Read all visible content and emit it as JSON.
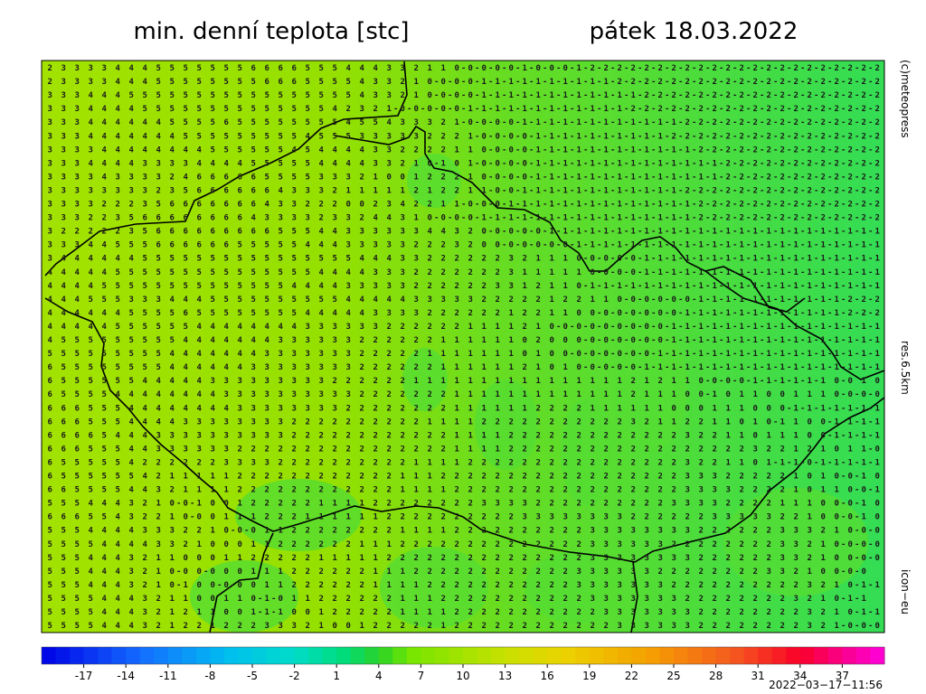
{
  "title": "min. denní teplota [stc]",
  "date": "pátek 18.03.2022",
  "credit": "(c)meteopress",
  "resolution": "res.6.5km",
  "model": "icon−eu",
  "timestamp": "2022−03−17−11:56",
  "map": {
    "rows": [
      " 2 3 3 3 3 4 4 4 5 5 5 5 5 5 5 6 6 6 6 5 5 5 4 4 4 3 3 2 1 1 0-0-0-0-0-1-0-0-0-1-2-2-2-2-2-2-2-2-2-2-2-2-2-2-2-2-2-2-2-2-2-2",
      " 2 3 3 3 3 4 4 4 5 5 5 5 5 5 5 5 6 6 6 5 5 5 5 4 3 3 2 1 0-0-0-0-1-1-1-1-1-1-1-1-1-1-2-2-2-2-2-2-2-2-2-2-2-2-2-2-2-2-2-2-2-2",
      " 3 3 3 4 4 4 5 5 5 5 5 5 5 5 5 5 5 5 5 5 5 5 5 4 3 3 2 1 0-0-0-0-1-1-1-1-1-1-1-1-1-1-1-1-2-2-2-2-2-2-2-2-2-2-2-2-2-2-2-2-2-2",
      " 3 3 3 4 4 4 4 5 5 5 5 5 5 5 5 5 5 5 5 5 5 4 2 3 2 1-0-0-0-0-0-1-1-1-1-1-1-1-1-1-1-1-1-2-2-2-2-2-2-2-2-2-2-2-2-2-2-2-2-2-2-2",
      " 3 3 3 4 4 4 4 4 4 5 5 5 5 6 5 5 5 5 5 5 5 5 4 5 5 4 3 3 3 2 1-0-0-0-0-1-1-1-1-1-1-1-1-1-1-1-1-2-2-2-2-2-2-2-2-2-2-2-2-2-2-2",
      " 3 3 3 4 4 4 4 4 4 4 5 5 5 5 5 5 5 5 5 4 5 5 5 3 3 3 3 3 2 2 2 1-0-0-0-0-1-1-1-1-1-1-1-1-1-1-2-2-2-2-2-2-2-2-2-2-2-2-2-2-2-2",
      " 3 3 3 3 4 4 4 4 4 4 4 4 5 5 5 5 5 5 4 5 4 4 4 4 3 3 2 2 2 2 1 1 0-0-0-0-1-1-1-1-1-1-1-1-1-1-1-1-2-2-2-2-2-2-2-2-2-2-2-2-2-2",
      " 3 3 3 4 4 4 4 3 3 3 3 4 4 4 4 5 5 5 5 5 4 4 4 4 3 3 2 1 0-1 0 1-0-0-0-0-1-1-1-1-1-1-1-1-1-1-1-1-1-1-2-2-2-2-2-2-2-2-2-2-2-2",
      " 3 3 3 3 4 3 3 3 3 2 4 6 6 6 6 6 5 5 5 5 3 3 3 2 1 0 0 1 2 2 2 1 0-0-0-0-1-1-1-1-1-1-1-1-1-1-1-1-1-1-2-2-2-2-2-2-2-2-2-2-2-2",
      " 3 3 3 3 3 3 3 3 2 3 5 6 6 6 6 6 6 4 3 3 3 2 1 1 1 1 1 2 1 2 2 1 1-0-0-1-1-1-1-1-1-1-1-1-1-1-1-2-2-2-2-2-2-2-2-2-2-2-2-2-2-2",
      " 3 3 3 3 2 2 2 3 5 6 6 6 6 6 6 6 4 3 3 2 2 2 0 0 2 3 4 2 2 1 1-0-0-0-1-1-1-1-1-1-1-1-1-1-1-1-1-1-2-2-2-2-2-2-2-2-2-2-2-2-2-2",
      " 3 3 3 2 2 3 5 6 6 6 6 6 6 6 6 4 3 3 3 3 2 3 3 2 4 4 3 1 0-0-0-0-1-1-1-1-1-1-1-1-1-1-1-1-1-1-1-1-2-2-2-2-2-2-2-2-2-2-2-2-2-2",
      " 3 2 2 2 2 2 3 5 6 6 6 6 6 6 6 6 6 5 5 5 4 4 3 3 3 3 3 3 4 4 3 2 0-0-0-0-0-1-1-1-1-1-1-1-1-1-1-1-1-1-1-1-1-1-1-1-1-1-1-1-1-1",
      " 3 3 3 4 4 5 5 5 6 6 6 6 6 6 5 5 5 5 5 4 4 4 3 3 3 3 3 2 2 2 3 2 0 0-0-0-0-0-0-1-1-1-1-1-1-1-1-1-1-1-1-1-1-1-1-1-1-1-1-1-1-1",
      " 3 4 4 4 4 4 4 5 5 5 5 5 5 5 5 5 5 5 5 5 5 5 5 4 4 4 3 3 2 2 2 2 2 2 3 2 1 1 1 0-0-0-0-0-1-1-1-1-1-1-1-1-1-1-1-1-1-1-1-1-1-1",
      " 4 4 4 4 4 5 5 5 5 5 5 5 5 5 5 5 5 5 5 5 4 4 4 4 3 3 3 2 2 2 2 2 2 2 3 1 1 1 1 1 0-0-0-0-1-1-1-1-1-1-1-1-1-1-1-1-1-1-1-1-1-1",
      " 4 4 4 4 5 5 5 5 5 5 5 5 5 5 5 5 5 5 4 4 4 4 3 3 3 3 3 2 2 2 2 2 2 3 3 1 2 1 1 0-1-1-1-1-1-1-1-1-1-1-1-1-1-1-1-1-1-1-1-1-1-1",
      " 4 4 4 5 5 5 3 3 3 4 4 4 5 5 5 5 5 5 5 5 5 5 4 4 4 4 4 3 3 3 3 3 2 2 2 2 2 1 2 2 1 1 0-0-0-0-0-0-1-1-1-1-1-1-1-1-1-1-1-2-2-2",
      " 4 4 4 4 4 4 5 5 5 5 6 5 5 5 5 5 5 5 5 4 4 4 4 4 3 3 3 3 2 2 2 2 2 2 1 2 2 1 1 0 0-0-0-0-0-0-0-1-1-1-1-1-1-1-1-1-1-1-1-2-2-2",
      " 4 4 4 4 4 5 5 5 5 5 5 4 4 4 4 4 4 4 4 3 3 3 3 3 3 2 2 2 2 2 2 1 1 1 1 2 1 0-0-0-0-0-0-0-0-0-1-1-1-1-1-1-1-1-1-1-1-1-1-1-1-1",
      " 4 5 5 5 5 5 5 5 5 5 4 4 4 4 4 4 4 3 3 3 3 3 3 2 2 2 2 2 2 1 1 1 1 1 1 0 2 0 0 0-0-0-0-0-0-0-1-1-1-1-1-1-1-1-1-1-1-1-1-1-1-1",
      " 5 5 5 5 5 5 5 5 5 4 4 4 4 4 4 4 3 3 3 3 3 3 3 2 2 2 2 2 1 1 1 1 1 1 1 0 1 0 0-0-0-0-0-0-0-1-1-1-1-1-1-1-1-1-1-1-1-1-1-1-1-1",
      " 6 5 5 5 5 5 5 5 5 4 4 4 4 4 4 3 3 3 3 3 3 3 3 2 2 2 2 2 2 1 1 1 1 1 1 2 1 0 1 0-0-0-0-0-1-1-1-1-1-1-1-1-1-1-1-1-1-1-1-1-1-1",
      " 6 5 5 5 5 5 5 4 4 4 4 4 3 3 3 3 3 3 3 3 3 2 2 2 2 2 2 1 1 1 1 1 1 1 1 1 1 1 1 1 1 1 1 2 1 2 1 1 0-0-0-0-1-1-1-1-1-1 0-0 1 0",
      " 6 5 5 5 5 4 4 4 4 4 4 4 4 3 3 3 3 3 3 3 3 3 3 2 2 2 2 2 2 2 1 1 1 1 1 1 1 1 1 1 1 1 1 2 1 1 1 0 0-1 0 1 1 0 0 1 1 1 0-0-0-0",
      " 6 6 6 5 5 5 4 4 4 4 4 4 4 4 3 3 3 3 3 3 3 3 2 2 2 2 2 2 2 2 1 1 1 1 1 1 2 2 2 2 1 1 1 1 1 1 0 0 0 1 1 1 0 0 0-1-1-1-1-1-1-1",
      " 6 6 6 5 5 5 4 4 4 4 3 3 3 3 3 3 3 3 2 2 2 2 2 2 2 2 2 2 1 1 1 1 2 2 2 2 2 2 2 2 2 2 2 3 2 1 1 2 2 1 1 0 1 0-1 1 0 0-1-1-1-1",
      " 6 6 6 6 5 4 4 4 3 3 3 3 3 3 3 3 3 3 2 2 2 2 2 2 2 2 2 2 2 2 1 1 1 1 2 2 2 2 2 2 2 2 2 2 2 2 2 3 2 2 1 1 0 1 1 1 0 0-1-1-1-1",
      " 6 6 6 5 5 5 4 4 3 3 3 3 3 3 2 2 2 2 2 2 2 2 2 2 2 2 2 2 2 2 1 1 1 1 2 2 2 2 2 2 2 2 2 2 2 2 2 2 2 2 2 2 3 2 2 1 2 1 0 1 1-0",
      " 6 5 5 5 5 5 4 2 2 2 2 2 2 3 3 3 3 2 2 2 2 2 2 2 2 2 2 1 1 1 1 2 2 2 2 2 2 2 2 2 2 2 2 2 2 2 2 3 2 2 1 1 0 1-1-1-0-1-1-1-1-1",
      " 6 5 5 5 5 5 5 4 2 1 1 1 1 1 2 2 2 2 2 2 2 2 2 2 2 2 1 1 1 2 2 2 2 2 2 2 2 2 2 2 2 2 2 2 2 2 2 3 3 3 2 2 2 2 2 1 0 1 0-0-1 0",
      " 6 6 5 5 5 5 4 4 3 2 1 1 1 1 2 2 2 2 2 2 2 2 2 2 2 2 1 1 1 1 2 2 2 2 2 2 2 2 2 2 2 2 2 2 2 2 2 3 3 3 3 2 2 2 2 1 0 1 1 0-0-1",
      " 5 5 5 4 4 4 3 2 1 0-0-1 0 0 1 2 2 2 2 2 1 1 1 1 2 2 2 2 2 2 2 2 3 3 3 3 2 2 2 2 2 2 2 2 2 2 3 3 3 3 2 2 2 2 1 1 1 0 0-0-1 0",
      " 6 6 6 5 5 4 3 2 2 1 0-0 0 1 1 1 2 2 2 1 1 1 1 1 1 2 2 2 2 2 2 2 2 2 2 3 3 3 3 3 3 3 3 2 2 2 2 2 2 3 3 3 3 3 2 2 1 0 0-0-1 0",
      " 5 5 5 4 4 4 4 3 3 3 2 2 1 0-0-0 1 1 2 2 2 2 2 2 2 2 1 1 1 1 2 2 2 2 2 2 2 2 2 2 3 3 3 3 3 3 3 3 2 2 2 2 2 2 3 3 3 2 1 0-0-0",
      " 5 5 5 5 4 4 4 4 3 3 2 1 0 0 0 1 1 2 2 2 2 2 2 1 1 1 2 2 2 2 2 2 2 2 2 2 2 2 2 2 3 3 3 3 3 3 2 2 2 2 2 2 2 2 3 3 2 1 0-0-0-0",
      " 5 5 5 4 4 4 3 2 1 1 0 0 0 1 1 2 2 2 2 2 1 1 1 1 1 2 2 2 2 2 2 2 2 2 2 2 2 2 2 2 3 3 3 3 3 3 3 3 2 2 2 2 2 2 3 3 2 1 0 0-0-0",
      " 5 5 5 4 4 4 3 2 1 0-0 0-0 0 0 1 1 1 2 2 2 2 2 2 1 1 1 2 2 2 2 2 2 2 2 2 2 2 2 3 3 3 3 3 3 2 2 2 2 2 2 2 2 3 3 2 1 0 0-0-0",
      " 5 5 5 4 4 4 3 2 1 0-1 0 0-0-0 0 1 1 2 2 2 2 2 2 1 1 1 1 2 2 2 2 2 2 2 2 2 2 2 3 3 3 3 3 3 3 2 2 2 2 2 2 2 2 2 2 3 2 1 0-1-1",
      " 5 5 5 5 4 4 4 3 2 1 1 0 0 1 1 0-1-0 1 1 2 2 2 2 2 2 1 1 1 2 2 2 2 2 2 2 2 2 2 2 3 3 3 3 3 3 3 2 2 2 2 2 2 2 2 3 2 1 0-1-1",
      " 5 5 5 5 4 4 4 3 2 1 2 1 1 0 0 1-1-1 0 0 1 2 2 2 2 2 1 1 1 1 2 2 2 2 2 2 2 2 2 2 2 3 3 3 3 3 3 3 2 2 2 2 2 2 2 2 3 2 1 0-1-1",
      " 5 5 5 5 4 4 4 3 2 1 2 2 1 2 2 2 3 3 3 2 1 0 0 1 2 2 2 2 2 1 2 2 2 2 2 2 2 2 2 2 2 2 3 3 3 3 3 3 2 2 2 2 2 2 2 2 3 2 1-0-0-0"
    ]
  },
  "colorbar": {
    "lim": [
      -20,
      40
    ],
    "ticks": [
      -17,
      -14,
      -11,
      -8,
      -5,
      -2,
      1,
      4,
      7,
      10,
      13,
      16,
      19,
      22,
      25,
      28,
      31,
      34,
      37
    ]
  }
}
